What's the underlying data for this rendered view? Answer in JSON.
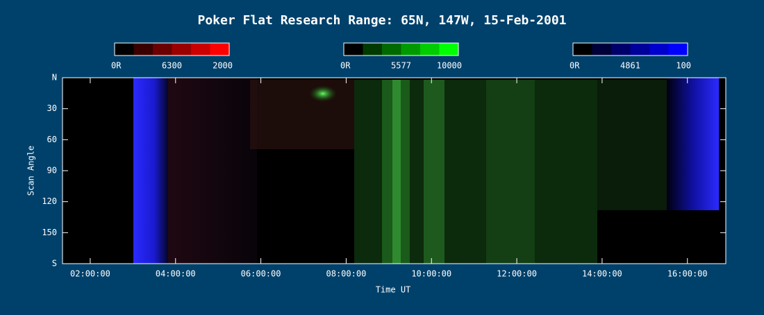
{
  "chart_data": {
    "type": "keogram",
    "title": "Poker Flat Research Range: 65N, 147W, 15-Feb-2001",
    "x_label": "Time UT",
    "y_label": "Scan Angle",
    "xlim": [
      1.35,
      16.9
    ],
    "xticks": [
      {
        "value": 2,
        "label": "02:00:00"
      },
      {
        "value": 4,
        "label": "04:00:00"
      },
      {
        "value": 6,
        "label": "06:00:00"
      },
      {
        "value": 8,
        "label": "08:00:00"
      },
      {
        "value": 10,
        "label": "10:00:00"
      },
      {
        "value": 12,
        "label": "12:00:00"
      },
      {
        "value": 14,
        "label": "14:00:00"
      },
      {
        "value": 16,
        "label": "16:00:00"
      }
    ],
    "ylim": [
      0,
      180
    ],
    "yticks": [
      {
        "value": 0,
        "label": "N"
      },
      30,
      60,
      90,
      120,
      150,
      {
        "value": 180,
        "label": "S"
      }
    ],
    "colorbars": [
      {
        "labels": [
          "0R",
          "6300",
          "2000"
        ],
        "colors": [
          "#000000",
          "#3a0000",
          "#6a0000",
          "#9a0000",
          "#cc0000",
          "#ff0000"
        ]
      },
      {
        "labels": [
          "0R",
          "5577",
          "10000"
        ],
        "colors": [
          "#000000",
          "#003a00",
          "#006a00",
          "#009a00",
          "#00cc00",
          "#00ff00"
        ]
      },
      {
        "labels": [
          "0R",
          "4861",
          "100"
        ],
        "colors": [
          "#000000",
          "#00003a",
          "#00006a",
          "#00009a",
          "#0000cc",
          "#0000ff"
        ]
      }
    ]
  }
}
